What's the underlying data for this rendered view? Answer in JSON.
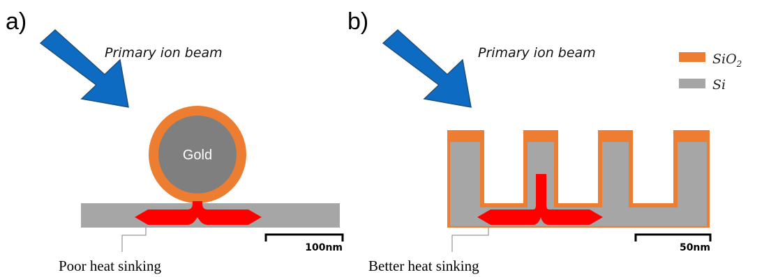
{
  "panel_a": {
    "label": "a)",
    "beam_label": "Primary ion beam",
    "particle_label": "Gold",
    "scale_label": "100nm",
    "caption": "Poor heat sinking"
  },
  "panel_b": {
    "label": "b)",
    "beam_label": "Primary ion beam",
    "scale_label": "50nm",
    "caption": "Better heat sinking"
  },
  "legend": {
    "items": [
      {
        "base": "SiO",
        "subscript": "2",
        "color": "#ed7d31"
      },
      {
        "base": "Si",
        "subscript": "",
        "color": "#a6a6a6"
      }
    ]
  },
  "colors": {
    "beam": "#0d6cc2",
    "beam_outline": "#1f4e79",
    "sio2": "#ed7d31",
    "si": "#a6a6a6",
    "gold": "#7f7f7f",
    "heat": "#ff0000"
  }
}
